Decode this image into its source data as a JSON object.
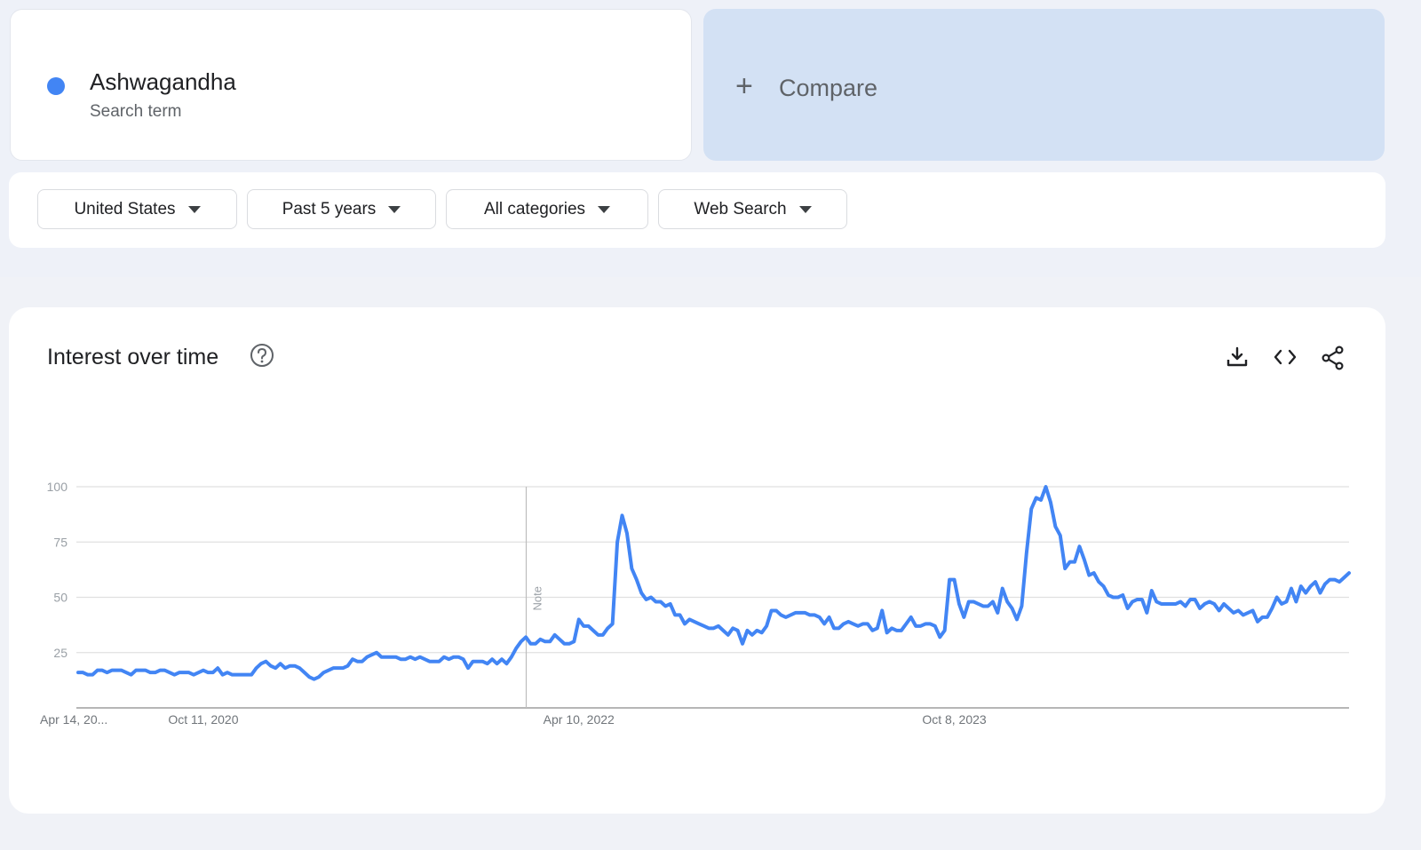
{
  "search_term": {
    "name": "Ashwagandha",
    "subtitle": "Search term",
    "color": "#4285f4"
  },
  "compare": {
    "plus": "+",
    "label": "Compare"
  },
  "filters": [
    {
      "label": "United States"
    },
    {
      "label": "Past 5 years"
    },
    {
      "label": "All categories"
    },
    {
      "label": "Web Search"
    }
  ],
  "panel": {
    "title": "Interest over time",
    "icons": [
      "help-icon",
      "download-icon",
      "embed-code-icon",
      "share-icon"
    ]
  },
  "chart_data": {
    "type": "line",
    "title": "",
    "xlabel": "",
    "ylabel": "",
    "ylim": [
      0,
      100
    ],
    "y_ticks": [
      25,
      50,
      75,
      100
    ],
    "x_tick_labels": [
      {
        "label": "Apr 14, 20...",
        "week": 0
      },
      {
        "label": "Oct 11, 2020",
        "week": 26
      },
      {
        "label": "Apr 10, 2022",
        "week": 104
      },
      {
        "label": "Oct 8, 2023",
        "week": 182
      }
    ],
    "note": {
      "label": "Note",
      "week": 93
    },
    "grid": true,
    "line_color": "#4285f4",
    "series": [
      {
        "values": [
          16,
          16,
          15,
          15,
          17,
          17,
          16,
          17,
          17,
          17,
          16,
          15,
          17,
          17,
          17,
          16,
          16,
          17,
          17,
          16,
          15,
          16,
          16,
          16,
          15,
          16,
          17,
          16,
          16,
          18,
          15,
          16,
          15,
          15,
          15,
          15,
          15,
          18,
          20,
          21,
          19,
          18,
          20,
          18,
          19,
          19,
          18,
          16,
          14,
          13,
          14,
          16,
          17,
          18,
          18,
          18,
          19,
          22,
          21,
          21,
          23,
          24,
          25,
          23,
          23,
          23,
          23,
          22,
          22,
          23,
          22,
          23,
          22,
          21,
          21,
          21,
          23,
          22,
          23,
          23,
          22,
          18,
          21,
          21,
          21,
          20,
          22,
          20,
          22,
          20,
          23,
          27,
          30,
          32,
          29,
          29,
          31,
          30,
          30,
          33,
          31,
          29,
          29,
          30,
          40,
          37,
          37,
          35,
          33,
          33,
          36,
          38,
          75,
          87,
          79,
          63,
          58,
          52,
          49,
          50,
          48,
          48,
          46,
          47,
          42,
          42,
          38,
          40,
          39,
          38,
          37,
          36,
          36,
          37,
          35,
          33,
          36,
          35,
          29,
          35,
          33,
          35,
          34,
          37,
          44,
          44,
          42,
          41,
          42,
          43,
          43,
          43,
          42,
          42,
          41,
          38,
          41,
          36,
          36,
          38,
          39,
          38,
          37,
          38,
          38,
          35,
          36,
          44,
          34,
          36,
          35,
          35,
          38,
          41,
          37,
          37,
          38,
          38,
          37,
          32,
          35,
          58,
          58,
          47,
          41,
          48,
          48,
          47,
          46,
          46,
          48,
          43,
          54,
          48,
          45,
          40,
          46,
          70,
          90,
          95,
          94,
          100,
          93,
          82,
          78,
          63,
          66,
          66,
          73,
          67,
          60,
          61,
          57,
          55,
          51,
          50,
          50,
          51,
          45,
          48,
          49,
          49,
          43,
          53,
          48,
          47,
          47,
          47,
          47,
          48,
          46,
          49,
          49,
          45,
          47,
          48,
          47,
          44,
          47,
          45,
          43,
          44,
          42,
          43,
          44,
          39,
          41,
          41,
          45,
          50,
          47,
          48,
          54,
          48,
          55,
          52,
          55,
          57,
          52,
          56,
          58,
          58,
          57,
          59,
          61
        ]
      }
    ]
  }
}
